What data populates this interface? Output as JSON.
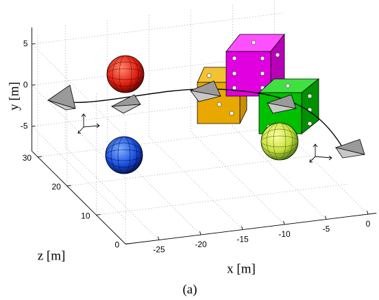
{
  "chart_data": {
    "type": "plot3d",
    "xlabel": "x [m]",
    "ylabel": "y [m]",
    "zlabel": "z [m]",
    "caption": "(a)",
    "xlim": [
      -29,
      1
    ],
    "ylim": [
      -8,
      7
    ],
    "zlim": [
      0,
      32
    ],
    "xticks": [
      -25,
      -20,
      -15,
      -10,
      -5,
      0
    ],
    "yticks": [
      -5,
      0,
      5
    ],
    "zticks": [
      0,
      10,
      20,
      30
    ],
    "grid": true
  }
}
